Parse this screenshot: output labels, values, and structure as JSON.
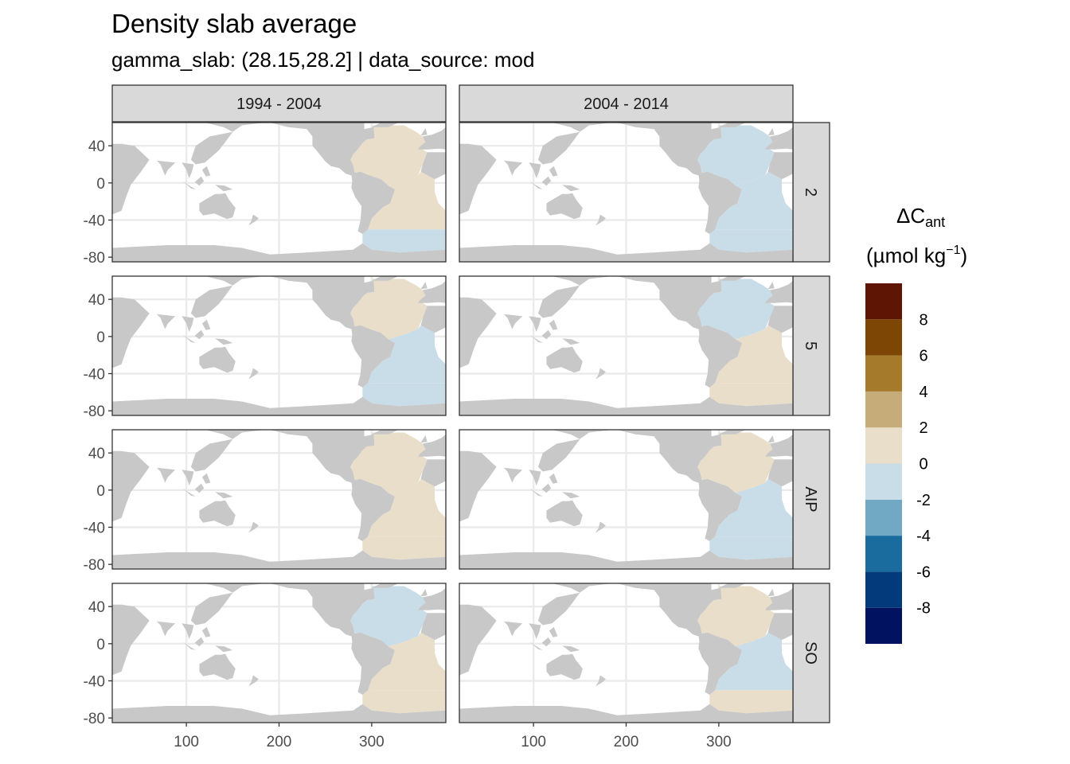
{
  "header": {
    "title": "Density slab average",
    "subtitle": "gamma_slab: (28.15,28.2] | data_source: mod"
  },
  "legend": {
    "title_line1_main": "ΔC",
    "title_line1_sub": "ant",
    "title_line2_main": "(µmol kg",
    "title_line2_sup": "−1",
    "title_line2_end": ")",
    "bins": [
      {
        "color": "#001260",
        "from": -10,
        "to": -8
      },
      {
        "color": "#023A7C",
        "from": -8,
        "to": -6
      },
      {
        "color": "#1A6C9F",
        "from": -6,
        "to": -4
      },
      {
        "color": "#71A8C4",
        "from": -4,
        "to": -2
      },
      {
        "color": "#C9DDE8",
        "from": -2,
        "to": 0
      },
      {
        "color": "#E9DECA",
        "from": 0,
        "to": 2
      },
      {
        "color": "#C6AC78",
        "from": 2,
        "to": 4
      },
      {
        "color": "#A57A2A",
        "from": 4,
        "to": 6
      },
      {
        "color": "#7E4605",
        "from": 6,
        "to": 8
      },
      {
        "color": "#5E1503",
        "from": 8,
        "to": 10
      }
    ],
    "labels": [
      "8",
      "6",
      "4",
      "2",
      "0",
      "-2",
      "-4",
      "-6",
      "-8"
    ]
  },
  "chart_data": {
    "type": "heatmap",
    "title": "Density slab average",
    "subtitle": "gamma_slab: (28.15,28.2] | data_source: mod",
    "facet_columns": [
      "1994 - 2004",
      "2004 - 2014"
    ],
    "facet_rows": [
      "2",
      "5",
      "AIP",
      "SO"
    ],
    "x_ticks": [
      100,
      200,
      300
    ],
    "x_tick_labels": [
      "100",
      "200",
      "300"
    ],
    "xlim": [
      20,
      380
    ],
    "y_ticks": [
      40,
      0,
      -40,
      -80
    ],
    "y_tick_labels": [
      "40",
      "0",
      "-40",
      "-80"
    ],
    "ylim": [
      -85,
      65
    ],
    "grid": true,
    "legend_position": "right",
    "value_unit": "µmol kg−1",
    "panels": [
      {
        "row": "2",
        "col": "1994 - 2004",
        "north_atlantic": 1,
        "south_atlantic": 1,
        "southern_ocean": -1
      },
      {
        "row": "2",
        "col": "2004 - 2014",
        "north_atlantic": -1,
        "south_atlantic": -1,
        "southern_ocean": -1
      },
      {
        "row": "5",
        "col": "1994 - 2004",
        "north_atlantic": 1,
        "south_atlantic": -1,
        "southern_ocean": -1
      },
      {
        "row": "5",
        "col": "2004 - 2014",
        "north_atlantic": -1,
        "south_atlantic": 1,
        "southern_ocean": 1
      },
      {
        "row": "AIP",
        "col": "1994 - 2004",
        "north_atlantic": 1,
        "south_atlantic": 1,
        "southern_ocean": 1
      },
      {
        "row": "AIP",
        "col": "2004 - 2014",
        "north_atlantic": 1,
        "south_atlantic": -1,
        "southern_ocean": -1
      },
      {
        "row": "SO",
        "col": "1994 - 2004",
        "north_atlantic": -1,
        "south_atlantic": 1,
        "southern_ocean": 1
      },
      {
        "row": "SO",
        "col": "2004 - 2014",
        "north_atlantic": 1,
        "south_atlantic": -1,
        "southern_ocean": 1
      }
    ]
  }
}
